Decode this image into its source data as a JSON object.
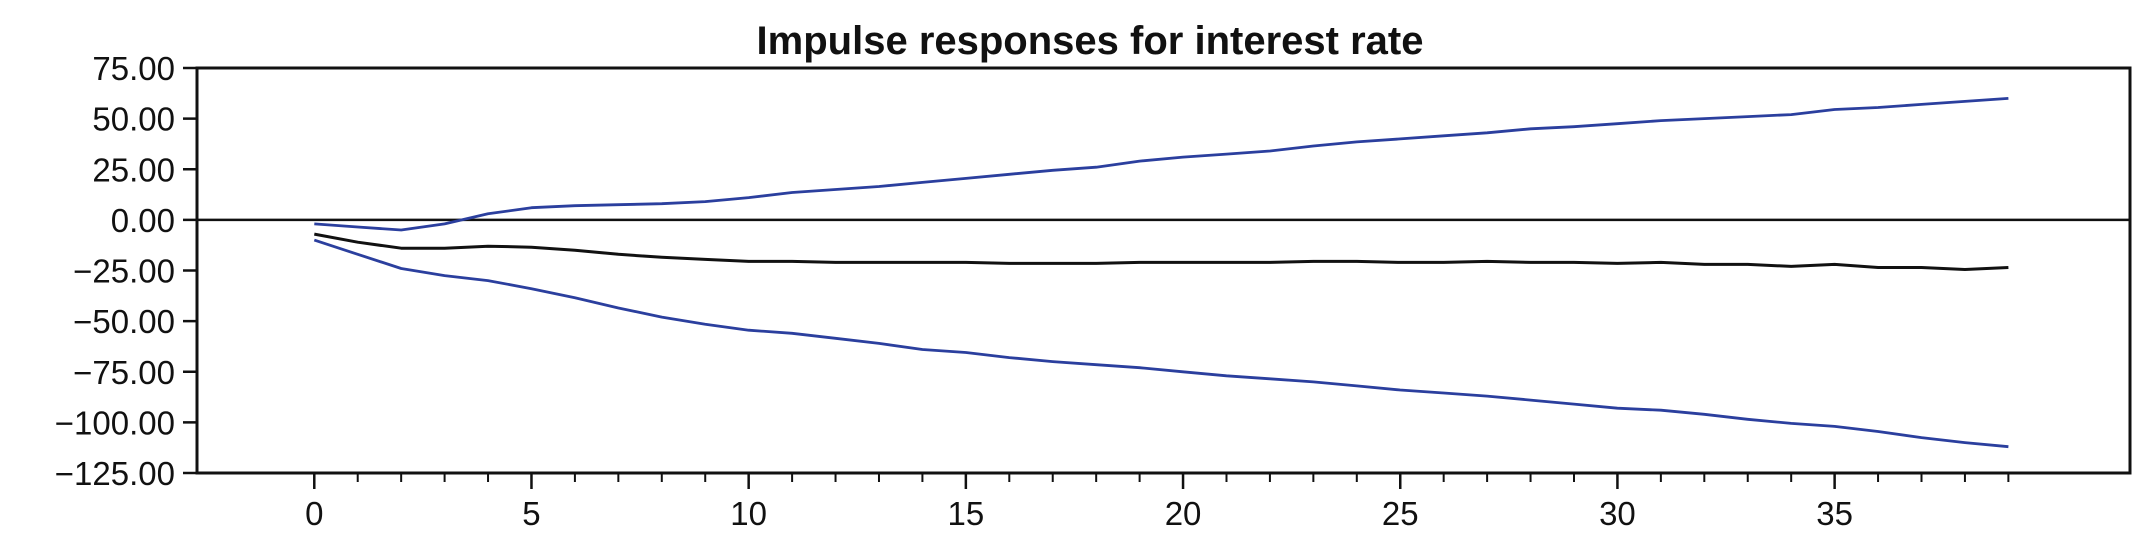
{
  "chart_data": {
    "type": "line",
    "title": "Impulse responses for interest rate",
    "xlabel": "",
    "ylabel": "",
    "xlim": [
      -2.7,
      41.8
    ],
    "ylim": [
      -125,
      75
    ],
    "xticks": [
      0,
      5,
      10,
      15,
      20,
      25,
      30,
      35
    ],
    "xtick_labels": [
      "0",
      "5",
      "10",
      "15",
      "20",
      "25",
      "30",
      "35"
    ],
    "yticks": [
      75,
      50,
      25,
      0,
      -25,
      -50,
      -75,
      -100,
      -125
    ],
    "ytick_labels": [
      "75.00",
      "50.00",
      "25.00",
      "0.00",
      "−25.00",
      "−50.00",
      "−75.00",
      "−100.00",
      "−125.00"
    ],
    "zero_line": true,
    "grid": false,
    "x": [
      0,
      1,
      2,
      3,
      4,
      5,
      6,
      7,
      8,
      9,
      10,
      11,
      12,
      13,
      14,
      15,
      16,
      17,
      18,
      19,
      20,
      21,
      22,
      23,
      24,
      25,
      26,
      27,
      28,
      29,
      30,
      31,
      32,
      33,
      34,
      35,
      36,
      37,
      38,
      39
    ],
    "series": [
      {
        "color": "#2b3f9e",
        "values": [
          -2,
          -3.5,
          -5,
          -2,
          3,
          6,
          7,
          7.5,
          8,
          9,
          11,
          13.5,
          15,
          16.5,
          18.5,
          20.5,
          22.5,
          24.5,
          26,
          29,
          31,
          32.5,
          34,
          36.5,
          38.5,
          40,
          41.5,
          43,
          45,
          46,
          47.5,
          49,
          50,
          51,
          52,
          54.5,
          55.5,
          57,
          58.5,
          60
        ]
      },
      {
        "color": "#111111",
        "values": [
          -7,
          -11,
          -14,
          -14,
          -13,
          -13.5,
          -15,
          -17,
          -18.5,
          -19.5,
          -20.5,
          -20.5,
          -21,
          -21,
          -21,
          -21,
          -21.5,
          -21.5,
          -21.5,
          -21,
          -21,
          -21,
          -21,
          -20.5,
          -20.5,
          -21,
          -21,
          -20.5,
          -21,
          -21,
          -21.5,
          -21,
          -22,
          -22,
          -23,
          -22,
          -23.5,
          -23.5,
          -24.5,
          -23.5
        ]
      },
      {
        "color": "#2b3f9e",
        "values": [
          -10,
          -17,
          -24,
          -27.5,
          -30,
          -34,
          -38.5,
          -43.5,
          -48,
          -51.5,
          -54.5,
          -56,
          -58.5,
          -61,
          -64,
          -65.5,
          -68,
          -70,
          -71.5,
          -73,
          -75,
          -77,
          -78.5,
          -80,
          -82,
          -84,
          -85.5,
          -87,
          -89,
          -91,
          -93,
          -94,
          -96,
          -98.5,
          -100.5,
          -102,
          -104.5,
          -107.5,
          -110,
          -112
        ]
      }
    ]
  }
}
